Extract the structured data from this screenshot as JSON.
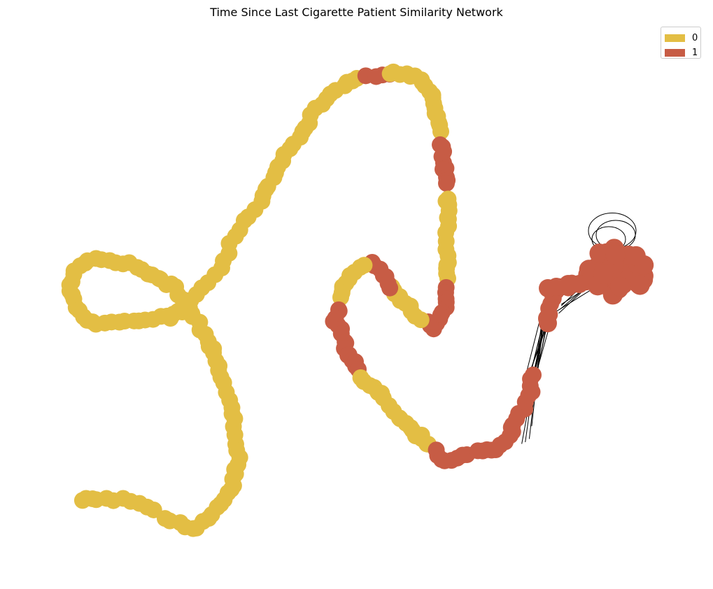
{
  "chart_data": {
    "type": "network",
    "title": "Time Since Last Cigarette Patient Similarity Network",
    "legend": {
      "placement": "top-right",
      "entries": [
        {
          "label": "0",
          "color": "#e3be44"
        },
        {
          "label": "1",
          "color": "#c75c45"
        }
      ]
    },
    "node_colors": {
      "0": "#e3be44",
      "1": "#c75c45"
    },
    "edge_color": "#000000"
  }
}
